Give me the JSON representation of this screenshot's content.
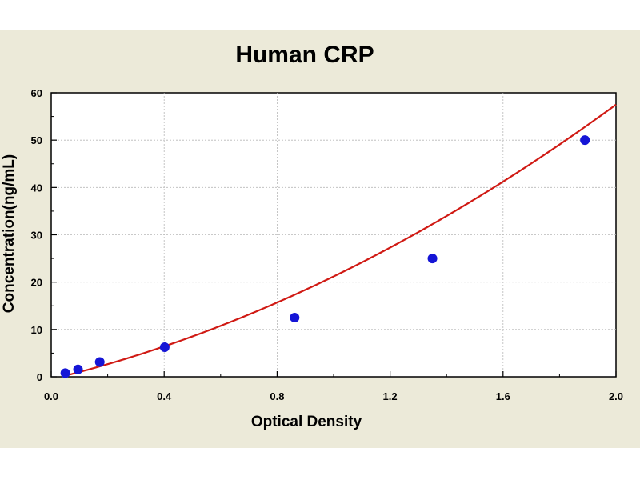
{
  "chart_data": {
    "type": "scatter",
    "title": "Human CRP",
    "xlabel": "Optical Density",
    "ylabel": "Concentration(ng/mL)",
    "xlim": [
      0.0,
      2.0
    ],
    "ylim": [
      0,
      60
    ],
    "x_ticks": [
      "0.0",
      "0.4",
      "0.8",
      "1.2",
      "1.6",
      "2.0"
    ],
    "y_ticks": [
      "0",
      "10",
      "20",
      "30",
      "40",
      "50",
      "60"
    ],
    "grid": true,
    "legend": "none",
    "series": [
      {
        "type": "scatter",
        "points": [
          {
            "x": 0.05,
            "y": 0.78
          },
          {
            "x": 0.095,
            "y": 1.56
          },
          {
            "x": 0.172,
            "y": 3.12
          },
          {
            "x": 0.402,
            "y": 6.25
          },
          {
            "x": 0.862,
            "y": 12.5
          },
          {
            "x": 1.35,
            "y": 25
          },
          {
            "x": 1.89,
            "y": 50
          }
        ],
        "color": "#1515d6"
      },
      {
        "type": "line",
        "fit": "quadratic",
        "coefficients": [
          -0.5,
          14.4,
          7.3
        ],
        "x_range": [
          0.0,
          2.0
        ],
        "color": "#d01a14"
      }
    ],
    "colors": {
      "background": "#ecead9",
      "plot_area": "#ffffff",
      "grid": "#b8b8b8",
      "points": "#1515d6",
      "curve": "#d01a14"
    }
  }
}
